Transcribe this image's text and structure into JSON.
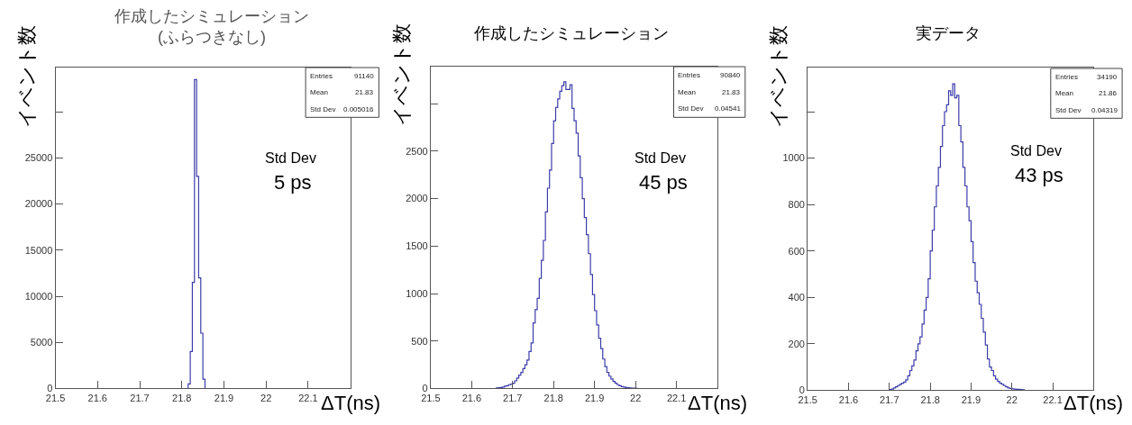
{
  "chart_data": [
    {
      "type": "histogram",
      "title": "作成したシミュレーション\n(ふらつきなし)",
      "xlabel": "ΔT(ns)",
      "ylabel": "イベント数",
      "color": "#3c3caa",
      "bins": [
        21.815,
        21.82,
        21.825,
        21.83,
        21.835,
        21.84,
        21.845,
        21.85,
        21.855
      ],
      "values": [
        500,
        4000,
        11500,
        33500,
        23000,
        12000,
        6000,
        1000
      ],
      "xlim": [
        21.5,
        22.2
      ],
      "xticks": [
        21.5,
        21.6,
        21.7,
        21.8,
        21.9,
        22,
        22.1
      ],
      "ylim": [
        0,
        34800
      ],
      "yticks": [
        0,
        5000,
        10000,
        15000,
        20000,
        25000,
        {
          "value": 30000,
          "label": null
        }
      ],
      "annotations": [
        "Entries",
        "91140",
        "Mean",
        "21.83",
        "Std Dev",
        "0.005016",
        "Std Dev",
        "5 ps"
      ]
    },
    {
      "type": "histogram",
      "title": "作成したシミュレーション",
      "xlabel": "ΔT(ns)",
      "ylabel": "イベント数",
      "color": "#3c3caa",
      "bins": [
        21.66,
        21.665,
        21.67,
        21.675,
        21.68,
        21.685,
        21.69,
        21.695,
        21.7,
        21.705,
        21.71,
        21.715,
        21.72,
        21.725,
        21.73,
        21.735,
        21.74,
        21.745,
        21.75,
        21.755,
        21.76,
        21.765,
        21.77,
        21.775,
        21.78,
        21.785,
        21.79,
        21.795,
        21.8,
        21.805,
        21.81,
        21.815,
        21.82,
        21.825,
        21.83,
        21.835,
        21.84,
        21.845,
        21.85,
        21.855,
        21.86,
        21.865,
        21.87,
        21.875,
        21.88,
        21.885,
        21.89,
        21.895,
        21.9,
        21.905,
        21.91,
        21.915,
        21.92,
        21.925,
        21.93,
        21.935,
        21.94,
        21.945,
        21.95,
        21.955,
        21.96,
        21.965,
        21.97,
        21.975,
        21.98,
        21.985,
        21.99,
        21.995,
        22.0,
        22.005
      ],
      "values": [
        5,
        8,
        10,
        15,
        25,
        30,
        40,
        45,
        55,
        80,
        110,
        140,
        170,
        210,
        250,
        300,
        390,
        480,
        690,
        830,
        950,
        1160,
        1350,
        1560,
        1860,
        2110,
        2300,
        2580,
        2820,
        2960,
        3050,
        3130,
        3190,
        3230,
        3150,
        3150,
        3200,
        2950,
        2820,
        2690,
        2450,
        2220,
        2000,
        1800,
        1620,
        1420,
        1200,
        990,
        820,
        670,
        530,
        420,
        310,
        230,
        170,
        130,
        100,
        75,
        55,
        40,
        30,
        20,
        15,
        10,
        8,
        5,
        4,
        3,
        2
      ],
      "xlim": [
        21.5,
        22.2
      ],
      "xticks": [
        21.5,
        21.6,
        21.7,
        21.8,
        21.9,
        22,
        22.1
      ],
      "ylim": [
        0,
        3390
      ],
      "yticks": [
        0,
        500,
        1000,
        1500,
        2000,
        2500,
        {
          "value": 3000,
          "label": null
        }
      ],
      "annotations": [
        "Entries",
        "90840",
        "Mean",
        "21.83",
        "Std Dev",
        "0.04541",
        "Std Dev",
        "45 ps"
      ]
    },
    {
      "type": "histogram",
      "title": "実データ",
      "xlabel": "ΔT(ns)",
      "ylabel": "イベント数",
      "color": "#3c3caa",
      "bins": [
        21.7,
        21.705,
        21.71,
        21.715,
        21.72,
        21.725,
        21.73,
        21.735,
        21.74,
        21.745,
        21.75,
        21.755,
        21.76,
        21.765,
        21.77,
        21.775,
        21.78,
        21.785,
        21.79,
        21.795,
        21.8,
        21.805,
        21.81,
        21.815,
        21.82,
        21.825,
        21.83,
        21.835,
        21.84,
        21.845,
        21.85,
        21.855,
        21.86,
        21.865,
        21.87,
        21.875,
        21.88,
        21.885,
        21.89,
        21.895,
        21.9,
        21.905,
        21.91,
        21.915,
        21.92,
        21.925,
        21.93,
        21.935,
        21.94,
        21.945,
        21.95,
        21.955,
        21.96,
        21.965,
        21.97,
        21.975,
        21.98,
        21.985,
        21.99,
        21.995,
        22.0,
        22.005,
        22.01,
        22.015,
        22.02,
        22.025,
        22.03
      ],
      "values": [
        3,
        5,
        10,
        15,
        20,
        25,
        30,
        35,
        45,
        62,
        85,
        105,
        130,
        170,
        200,
        230,
        285,
        345,
        400,
        480,
        600,
        690,
        790,
        880,
        960,
        1050,
        1140,
        1200,
        1230,
        1290,
        1270,
        1320,
        1260,
        1270,
        1140,
        1070,
        960,
        880,
        790,
        730,
        640,
        550,
        470,
        420,
        370,
        310,
        250,
        195,
        135,
        100,
        85,
        62,
        48,
        38,
        30,
        25,
        20,
        15,
        10,
        8,
        6,
        5,
        4,
        4,
        3,
        2
      ],
      "xlim": [
        21.5,
        22.2
      ],
      "xticks": [
        21.5,
        21.6,
        21.7,
        21.8,
        21.9,
        22,
        22.1
      ],
      "ylim": [
        0,
        1390
      ],
      "yticks": [
        0,
        200,
        400,
        600,
        800,
        1000,
        {
          "value": 1200,
          "label": null
        }
      ],
      "annotations": [
        "Entries",
        "34190",
        "Mean",
        "21.86",
        "Std Dev",
        "0.04319",
        "Std Dev",
        "43 ps"
      ]
    }
  ]
}
